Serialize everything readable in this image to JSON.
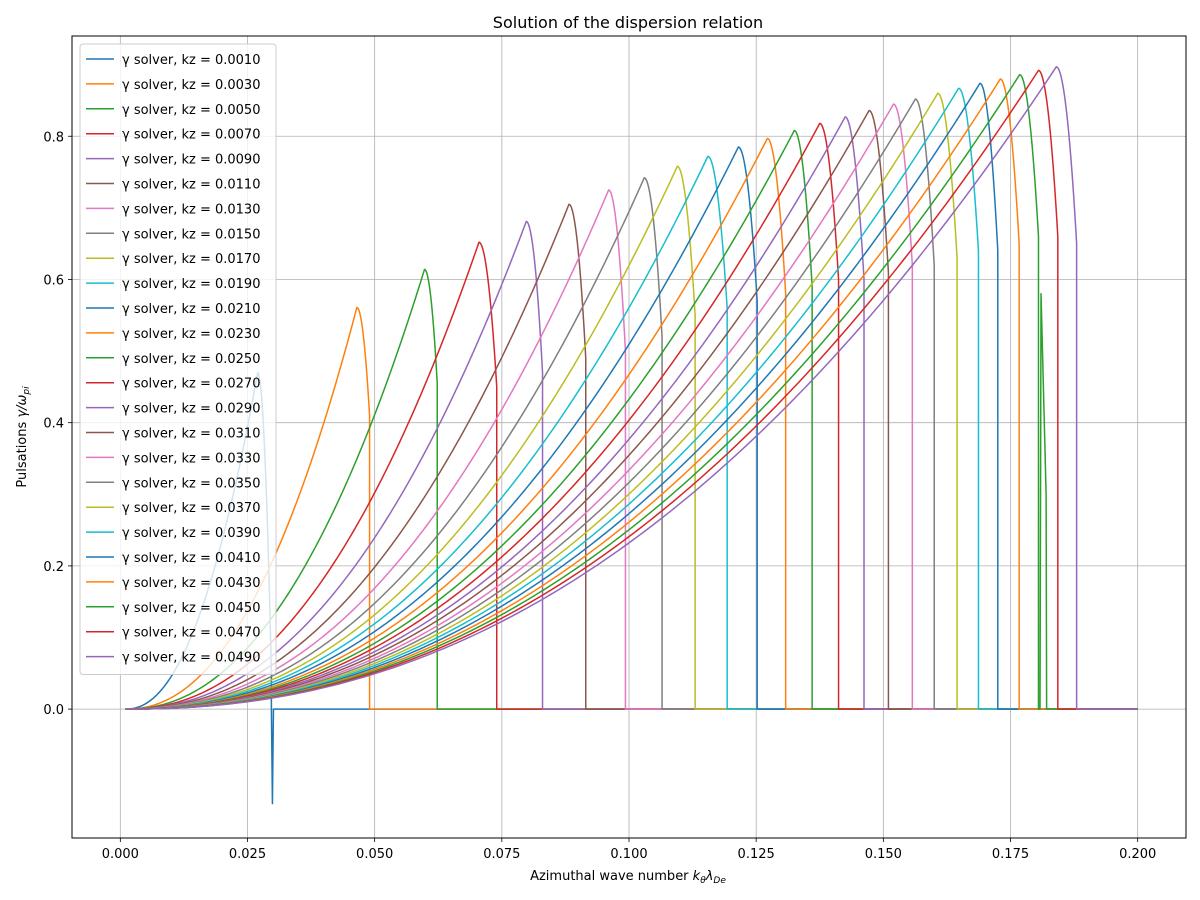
{
  "chart_data": {
    "type": "line",
    "title": "Solution of the dispersion relation",
    "xlabel": "Azimuthal wave number",
    "xlabel_math": "kθλDe",
    "ylabel": "Pulsations",
    "ylabel_math": "γ/ωpi",
    "xlim": [
      -0.0095,
      0.2095
    ],
    "ylim": [
      -0.18,
      0.94
    ],
    "xticks": [
      0.0,
      0.025,
      0.05,
      0.075,
      0.1,
      0.125,
      0.15,
      0.175,
      0.2
    ],
    "xtick_labels": [
      "0.000",
      "0.025",
      "0.050",
      "0.075",
      "0.100",
      "0.125",
      "0.150",
      "0.175",
      "0.200"
    ],
    "yticks": [
      0.0,
      0.2,
      0.4,
      0.6,
      0.8
    ],
    "ytick_labels": [
      "0.0",
      "0.2",
      "0.4",
      "0.6",
      "0.8"
    ],
    "grid": true,
    "legend_position": "upper-left",
    "x_domain": [
      0.001,
      0.2
    ],
    "series": [
      {
        "name": "γ solver, kz = 0.0010",
        "color": "#1f77b4",
        "peak_x": 0.027,
        "peak_y": 0.47,
        "cutoff_x": 0.0297,
        "cutoff_y": 0.05,
        "min_dip": -0.132
      },
      {
        "name": "γ solver, kz = 0.0030",
        "color": "#ff7f0e",
        "peak_x": 0.0465,
        "peak_y": 0.561,
        "cutoff_x": 0.049,
        "cutoff_y": 0.41
      },
      {
        "name": "γ solver, kz = 0.0050",
        "color": "#2ca02c",
        "peak_x": 0.0598,
        "peak_y": 0.614,
        "cutoff_x": 0.0623,
        "cutoff_y": 0.455
      },
      {
        "name": "γ solver, kz = 0.0070",
        "color": "#d62728",
        "peak_x": 0.0705,
        "peak_y": 0.652,
        "cutoff_x": 0.074,
        "cutoff_y": 0.45
      },
      {
        "name": "γ solver, kz = 0.0090",
        "color": "#9467bd",
        "peak_x": 0.0798,
        "peak_y": 0.681,
        "cutoff_x": 0.083,
        "cutoff_y": 0.47
      },
      {
        "name": "γ solver, kz = 0.0110",
        "color": "#8c564b",
        "peak_x": 0.0882,
        "peak_y": 0.705,
        "cutoff_x": 0.0915,
        "cutoff_y": 0.49
      },
      {
        "name": "γ solver, kz = 0.0130",
        "color": "#e377c2",
        "peak_x": 0.096,
        "peak_y": 0.725,
        "cutoff_x": 0.0993,
        "cutoff_y": 0.5
      },
      {
        "name": "γ solver, kz = 0.0150",
        "color": "#7f7f7f",
        "peak_x": 0.103,
        "peak_y": 0.742,
        "cutoff_x": 0.1065,
        "cutoff_y": 0.52
      },
      {
        "name": "γ solver, kz = 0.0170",
        "color": "#bcbd22",
        "peak_x": 0.1095,
        "peak_y": 0.758,
        "cutoff_x": 0.113,
        "cutoff_y": 0.55
      },
      {
        "name": "γ solver, kz = 0.0190",
        "color": "#17becf",
        "peak_x": 0.1155,
        "peak_y": 0.772,
        "cutoff_x": 0.1193,
        "cutoff_y": 0.56
      },
      {
        "name": "γ solver, kz = 0.0210",
        "color": "#1f77b4",
        "peak_x": 0.1215,
        "peak_y": 0.785,
        "cutoff_x": 0.1252,
        "cutoff_y": 0.57
      },
      {
        "name": "γ solver, kz = 0.0230",
        "color": "#ff7f0e",
        "peak_x": 0.1272,
        "peak_y": 0.797,
        "cutoff_x": 0.1308,
        "cutoff_y": 0.58
      },
      {
        "name": "γ solver, kz = 0.0250",
        "color": "#2ca02c",
        "peak_x": 0.1325,
        "peak_y": 0.808,
        "cutoff_x": 0.136,
        "cutoff_y": 0.59
      },
      {
        "name": "γ solver, kz = 0.0270",
        "color": "#d62728",
        "peak_x": 0.1375,
        "peak_y": 0.818,
        "cutoff_x": 0.1412,
        "cutoff_y": 0.6
      },
      {
        "name": "γ solver, kz = 0.0290",
        "color": "#9467bd",
        "peak_x": 0.1425,
        "peak_y": 0.827,
        "cutoff_x": 0.1462,
        "cutoff_y": 0.6
      },
      {
        "name": "γ solver, kz = 0.0310",
        "color": "#8c564b",
        "peak_x": 0.1472,
        "peak_y": 0.836,
        "cutoff_x": 0.151,
        "cutoff_y": 0.61
      },
      {
        "name": "γ solver, kz = 0.0330",
        "color": "#e377c2",
        "peak_x": 0.152,
        "peak_y": 0.845,
        "cutoff_x": 0.1557,
        "cutoff_y": 0.62
      },
      {
        "name": "γ solver, kz = 0.0350",
        "color": "#7f7f7f",
        "peak_x": 0.1563,
        "peak_y": 0.852,
        "cutoff_x": 0.16,
        "cutoff_y": 0.62
      },
      {
        "name": "γ solver, kz = 0.0370",
        "color": "#bcbd22",
        "peak_x": 0.1607,
        "peak_y": 0.86,
        "cutoff_x": 0.1645,
        "cutoff_y": 0.63
      },
      {
        "name": "γ solver, kz = 0.0390",
        "color": "#17becf",
        "peak_x": 0.1648,
        "peak_y": 0.867,
        "cutoff_x": 0.1687,
        "cutoff_y": 0.64
      },
      {
        "name": "γ solver, kz = 0.0410",
        "color": "#1f77b4",
        "peak_x": 0.169,
        "peak_y": 0.874,
        "cutoff_x": 0.1725,
        "cutoff_y": 0.64
      },
      {
        "name": "γ solver, kz = 0.0430",
        "color": "#ff7f0e",
        "peak_x": 0.173,
        "peak_y": 0.88,
        "cutoff_x": 0.1767,
        "cutoff_y": 0.65
      },
      {
        "name": "γ solver, kz = 0.0450",
        "color": "#2ca02c",
        "peak_x": 0.1768,
        "peak_y": 0.886,
        "cutoff_x": 0.1805,
        "cutoff_y": 0.66,
        "spike_x": 0.1808,
        "spike_y": 0.58
      },
      {
        "name": "γ solver, kz = 0.0470",
        "color": "#d62728",
        "peak_x": 0.1805,
        "peak_y": 0.892,
        "cutoff_x": 0.1843,
        "cutoff_y": 0.66
      },
      {
        "name": "γ solver, kz = 0.0490",
        "color": "#9467bd",
        "peak_x": 0.184,
        "peak_y": 0.897,
        "cutoff_x": 0.188,
        "cutoff_y": 0.65
      }
    ]
  }
}
